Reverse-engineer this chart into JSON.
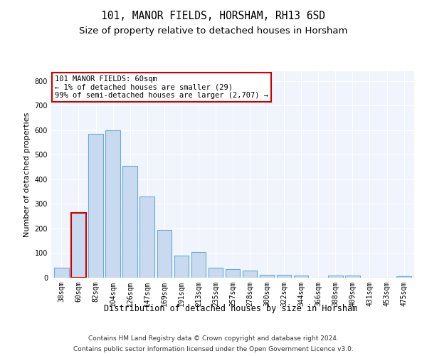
{
  "title": "101, MANOR FIELDS, HORSHAM, RH13 6SD",
  "subtitle": "Size of property relative to detached houses in Horsham",
  "xlabel": "Distribution of detached houses by size in Horsham",
  "ylabel": "Number of detached properties",
  "categories": [
    "38sqm",
    "60sqm",
    "82sqm",
    "104sqm",
    "126sqm",
    "147sqm",
    "169sqm",
    "191sqm",
    "213sqm",
    "235sqm",
    "257sqm",
    "278sqm",
    "300sqm",
    "322sqm",
    "344sqm",
    "366sqm",
    "388sqm",
    "409sqm",
    "431sqm",
    "453sqm",
    "475sqm"
  ],
  "values": [
    40,
    265,
    585,
    600,
    455,
    330,
    195,
    90,
    103,
    40,
    35,
    30,
    13,
    13,
    10,
    0,
    8,
    8,
    0,
    0,
    7
  ],
  "bar_color": "#c8daf0",
  "bar_edge_color": "#6aaad4",
  "highlight_bar_index": 1,
  "highlight_bar_edge_color": "#cc0000",
  "annotation_text": "101 MANOR FIELDS: 60sqm\n← 1% of detached houses are smaller (29)\n99% of semi-detached houses are larger (2,707) →",
  "annotation_box_facecolor": "#ffffff",
  "annotation_box_edgecolor": "#cc0000",
  "ylim": [
    0,
    840
  ],
  "yticks": [
    0,
    100,
    200,
    300,
    400,
    500,
    600,
    700,
    800
  ],
  "background_color": "#ffffff",
  "plot_bg_color": "#f0f4fc",
  "grid_color": "#ffffff",
  "footer_line1": "Contains HM Land Registry data © Crown copyright and database right 2024.",
  "footer_line2": "Contains public sector information licensed under the Open Government Licence v3.0.",
  "title_fontsize": 10.5,
  "subtitle_fontsize": 9.5,
  "xlabel_fontsize": 8.5,
  "ylabel_fontsize": 8,
  "tick_fontsize": 7,
  "annotation_fontsize": 7.5,
  "footer_fontsize": 6.5
}
